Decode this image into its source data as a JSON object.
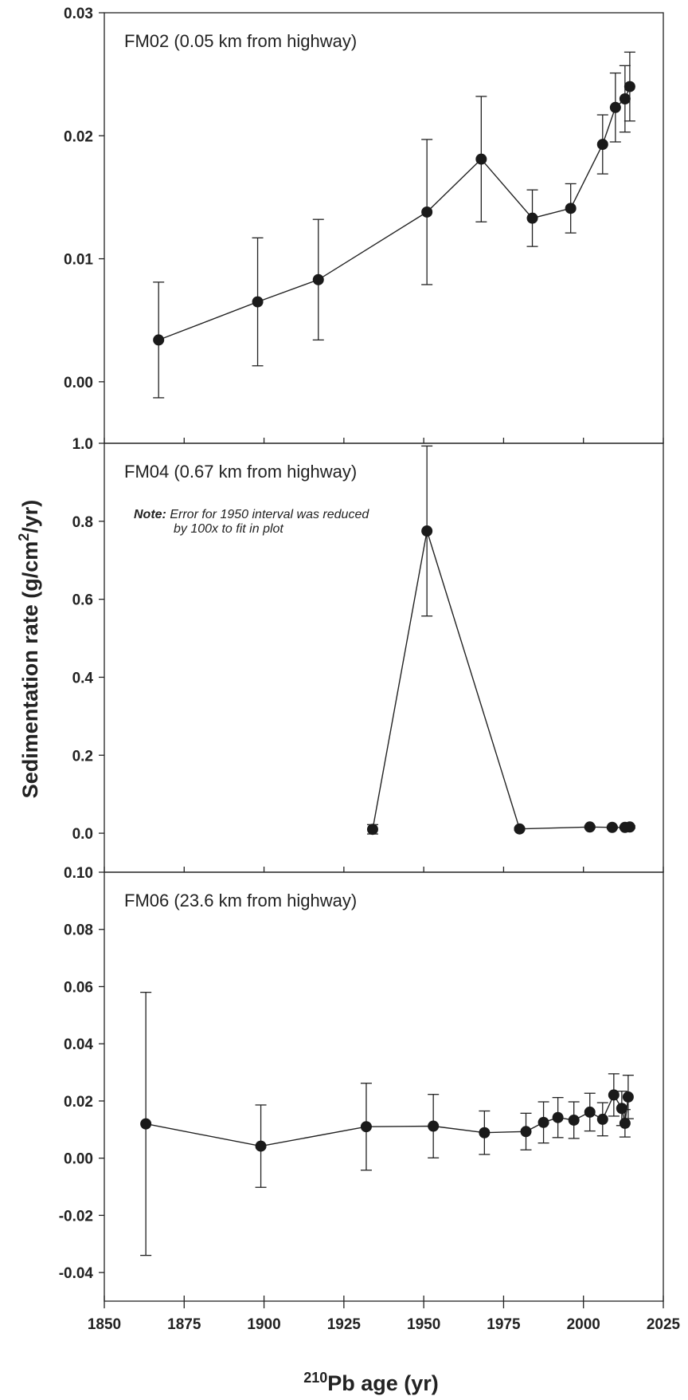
{
  "chart_data": {
    "type": "scatter",
    "x_axis": {
      "label_super": "210",
      "label_main": "Pb age (yr)",
      "range": [
        1850,
        2025
      ],
      "ticks": [
        1850,
        1875,
        1900,
        1925,
        1950,
        1975,
        2000,
        2025
      ],
      "tick_labels": [
        "1850",
        "1875",
        "1900",
        "1925",
        "1950",
        "1975",
        "2000",
        "2025"
      ]
    },
    "y_axis": {
      "label_main": "Sedimentation rate (g/cm",
      "label_super": "2",
      "label_end": "/yr)"
    },
    "panels": [
      {
        "title": "FM02 (0.05 km from highway)",
        "ylim": [
          -0.005,
          0.03
        ],
        "ticks": [
          0.0,
          0.01,
          0.02,
          0.03
        ],
        "tick_labels": [
          "0.00",
          "0.01",
          "0.02",
          "0.03"
        ],
        "points": [
          {
            "x": 1867,
            "y": 0.0034,
            "lo": -0.0013,
            "hi": 0.0081
          },
          {
            "x": 1898,
            "y": 0.0065,
            "lo": 0.0013,
            "hi": 0.0117
          },
          {
            "x": 1917,
            "y": 0.0083,
            "lo": 0.0034,
            "hi": 0.0132
          },
          {
            "x": 1951,
            "y": 0.0138,
            "lo": 0.0079,
            "hi": 0.0197
          },
          {
            "x": 1968,
            "y": 0.0181,
            "lo": 0.013,
            "hi": 0.0232
          },
          {
            "x": 1984,
            "y": 0.0133,
            "lo": 0.011,
            "hi": 0.0156
          },
          {
            "x": 1996,
            "y": 0.0141,
            "lo": 0.0121,
            "hi": 0.0161
          },
          {
            "x": 2006,
            "y": 0.0193,
            "lo": 0.0169,
            "hi": 0.0217
          },
          {
            "x": 2010,
            "y": 0.0223,
            "lo": 0.0195,
            "hi": 0.0251
          },
          {
            "x": 2013,
            "y": 0.023,
            "lo": 0.0203,
            "hi": 0.0257
          },
          {
            "x": 2014.5,
            "y": 0.024,
            "lo": 0.0212,
            "hi": 0.0268
          }
        ]
      },
      {
        "title": "FM04 (0.67 km from highway)",
        "note_bold": "Note:",
        "note_line1": "Error for 1950 interval was reduced",
        "note_line2": "by 100x to fit in plot",
        "ylim": [
          -0.1,
          1.0
        ],
        "ticks": [
          0.0,
          0.2,
          0.4,
          0.6,
          0.8,
          1.0
        ],
        "tick_labels": [
          "0.0",
          "0.2",
          "0.4",
          "0.6",
          "0.8",
          "1.0"
        ],
        "points": [
          {
            "x": 1934,
            "y": 0.01,
            "lo": -0.002,
            "hi": 0.022
          },
          {
            "x": 1951,
            "y": 0.775,
            "lo": 0.557,
            "hi": 0.993
          },
          {
            "x": 1980,
            "y": 0.011,
            "lo": 0.008,
            "hi": 0.014
          },
          {
            "x": 2002,
            "y": 0.016,
            "lo": 0.013,
            "hi": 0.019
          },
          {
            "x": 2009,
            "y": 0.015,
            "lo": 0.012,
            "hi": 0.018
          },
          {
            "x": 2013,
            "y": 0.015,
            "lo": 0.012,
            "hi": 0.018
          },
          {
            "x": 2014.5,
            "y": 0.016,
            "lo": 0.013,
            "hi": 0.019
          }
        ]
      },
      {
        "title": "FM06 (23.6 km from highway)",
        "ylim": [
          -0.05,
          0.1
        ],
        "ticks": [
          -0.04,
          -0.02,
          0.0,
          0.02,
          0.04,
          0.06,
          0.08,
          0.1
        ],
        "tick_labels": [
          "-0.04",
          "-0.02",
          "0.00",
          "0.02",
          "0.04",
          "0.06",
          "0.08",
          "0.10"
        ],
        "points": [
          {
            "x": 1863,
            "y": 0.012,
            "lo": -0.034,
            "hi": 0.058
          },
          {
            "x": 1899,
            "y": 0.0042,
            "lo": -0.0102,
            "hi": 0.0186
          },
          {
            "x": 1932,
            "y": 0.011,
            "lo": -0.0042,
            "hi": 0.0262
          },
          {
            "x": 1953,
            "y": 0.0112,
            "lo": 0.0001,
            "hi": 0.0223
          },
          {
            "x": 1969,
            "y": 0.0089,
            "lo": 0.0013,
            "hi": 0.0165
          },
          {
            "x": 1982,
            "y": 0.0093,
            "lo": 0.0029,
            "hi": 0.0157
          },
          {
            "x": 1987.5,
            "y": 0.0125,
            "lo": 0.0053,
            "hi": 0.0197
          },
          {
            "x": 1992,
            "y": 0.0142,
            "lo": 0.0072,
            "hi": 0.0212
          },
          {
            "x": 1997,
            "y": 0.0133,
            "lo": 0.0069,
            "hi": 0.0197
          },
          {
            "x": 2002,
            "y": 0.0161,
            "lo": 0.0095,
            "hi": 0.0227
          },
          {
            "x": 2006,
            "y": 0.0136,
            "lo": 0.0078,
            "hi": 0.0194
          },
          {
            "x": 2009.5,
            "y": 0.0221,
            "lo": 0.0147,
            "hi": 0.0295
          },
          {
            "x": 2012,
            "y": 0.0174,
            "lo": 0.0114,
            "hi": 0.0234
          },
          {
            "x": 2013,
            "y": 0.0122,
            "lo": 0.0074,
            "hi": 0.017
          },
          {
            "x": 2014,
            "y": 0.0214,
            "lo": 0.0138,
            "hi": 0.029
          }
        ]
      }
    ]
  }
}
